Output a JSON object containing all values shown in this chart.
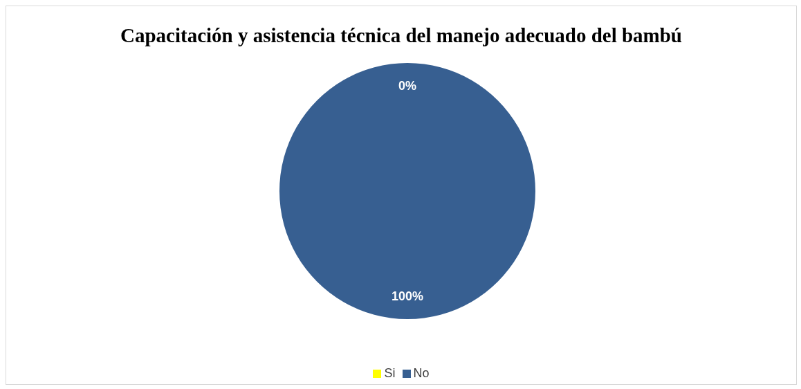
{
  "chart_data": {
    "type": "pie",
    "title": "Capacitación y asistencia técnica del manejo adecuado del bambú",
    "categories": [
      "Si",
      "No"
    ],
    "values": [
      0,
      100
    ],
    "colors": [
      "#ffff00",
      "#375f91"
    ],
    "value_labels": [
      "0%",
      "100%"
    ],
    "legend": "bottom"
  }
}
